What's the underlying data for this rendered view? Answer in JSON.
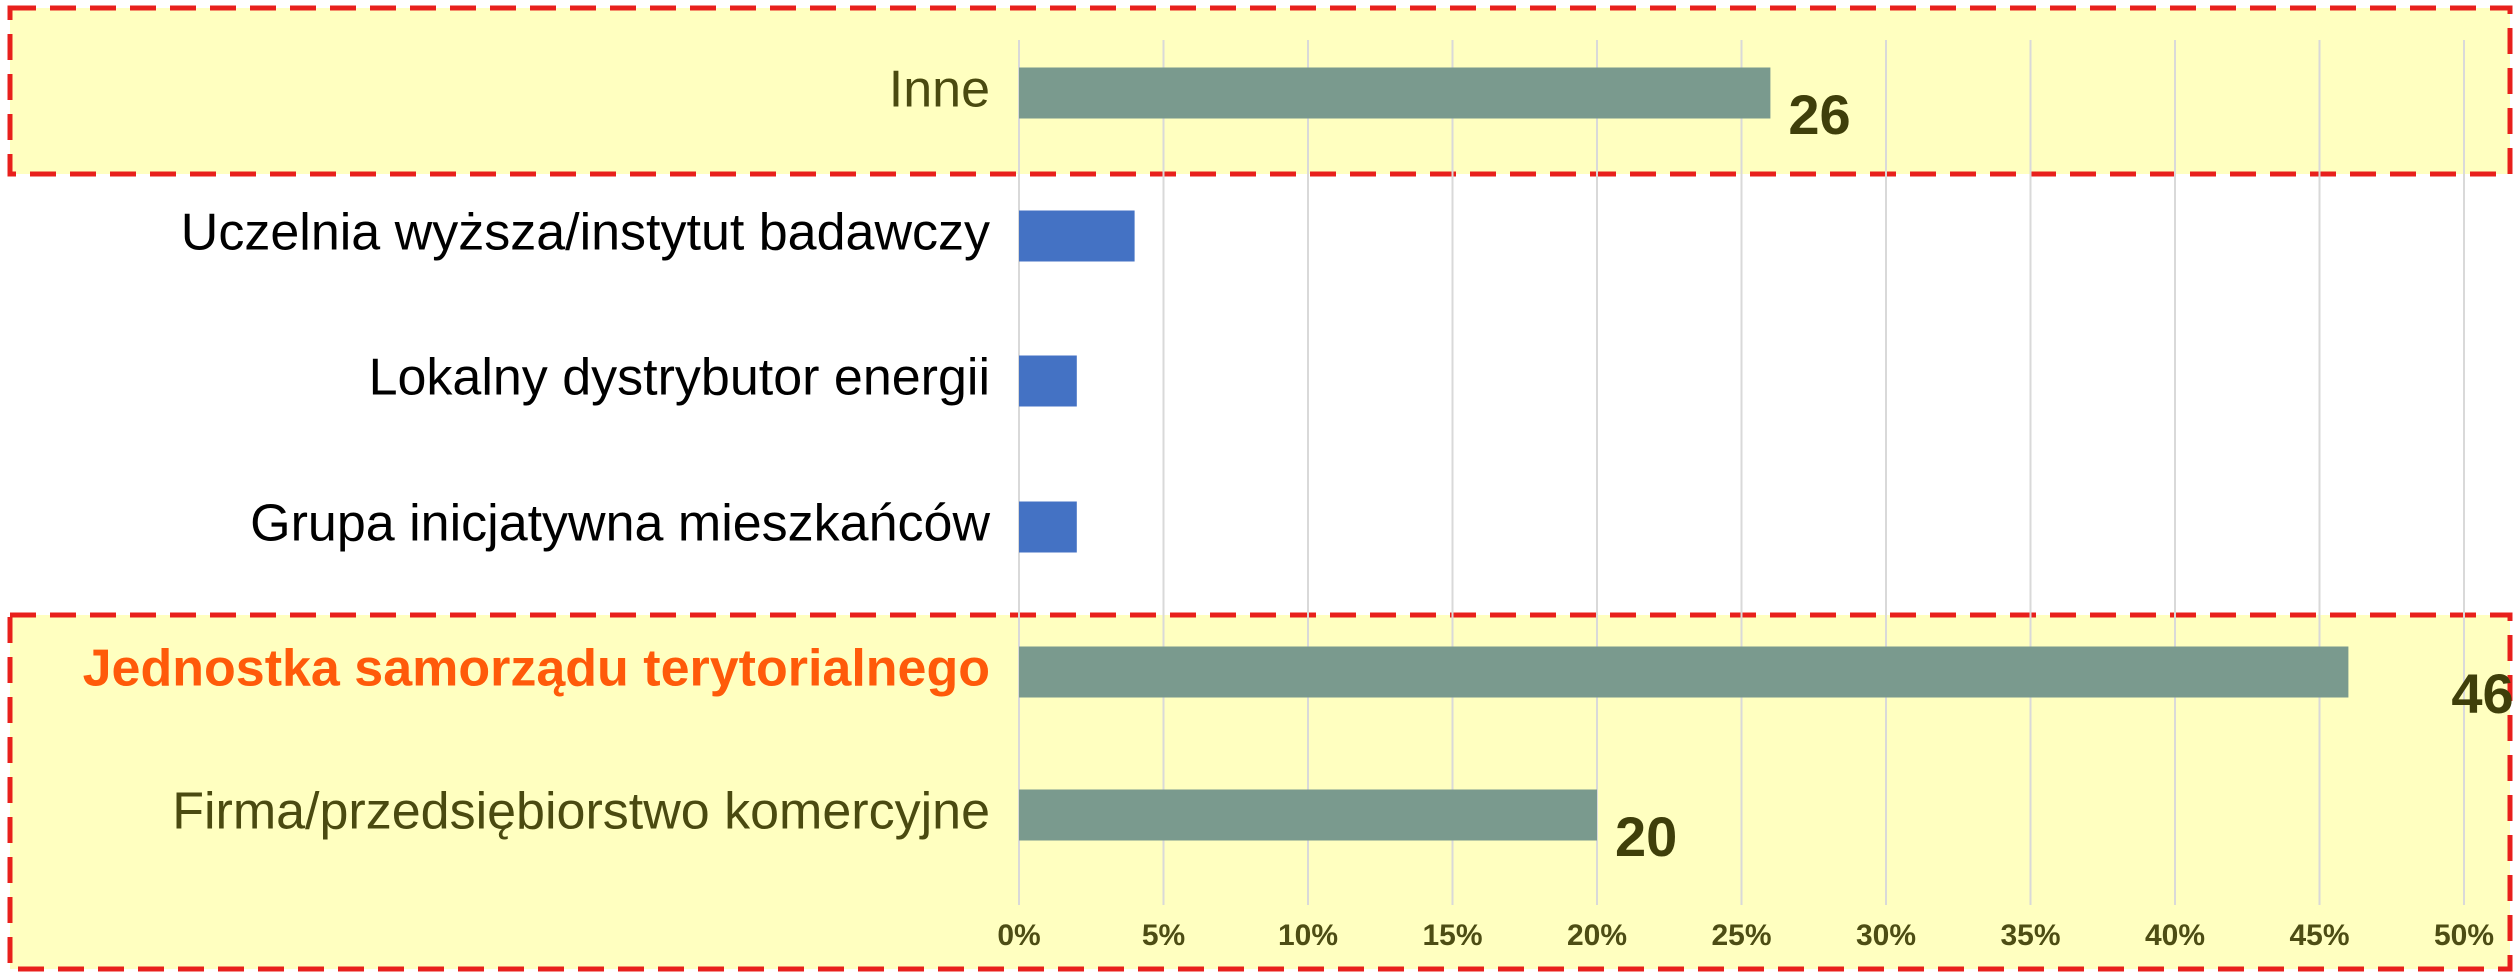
{
  "chart_data": {
    "type": "barh",
    "categories": [
      "Inne",
      "Uczelnia wyższa/instytut badawczy",
      "Lokalny dystrybutor energii",
      "Grupa inicjatywna mieszkańców",
      "Jednostka samorządu terytorialnego",
      "Firma/przedsiębiorstwo komercyjne"
    ],
    "values": [
      26,
      4,
      2,
      2,
      46,
      20
    ],
    "value_labels": [
      "26",
      null,
      null,
      null,
      "46",
      "20"
    ],
    "colors": [
      "#7a9a8e",
      "#4472c4",
      "#4472c4",
      "#4472c4",
      "#7a9a8e",
      "#7a9a8e"
    ],
    "xlim": [
      0,
      50
    ],
    "xticks": [
      {
        "value": 0,
        "label": "0%"
      },
      {
        "value": 5,
        "label": "5%"
      },
      {
        "value": 10,
        "label": "10%"
      },
      {
        "value": 15,
        "label": "15%"
      },
      {
        "value": 20,
        "label": "20%"
      },
      {
        "value": 25,
        "label": "25%"
      },
      {
        "value": 30,
        "label": "30%"
      },
      {
        "value": 35,
        "label": "35%"
      },
      {
        "value": 40,
        "label": "40%"
      },
      {
        "value": 45,
        "label": "45%"
      },
      {
        "value": 50,
        "label": "50%"
      }
    ],
    "grid": true
  }
}
